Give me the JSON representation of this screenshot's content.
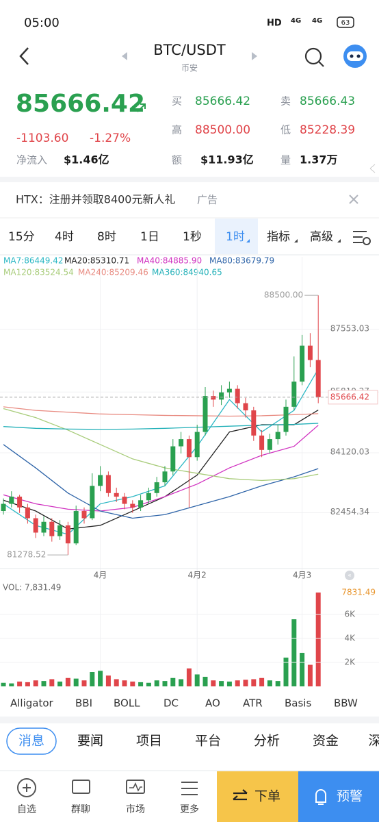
{
  "status": {
    "time": "05:00",
    "hd": "HD",
    "net1": "4G",
    "net2": "4G",
    "battery": "63"
  },
  "header": {
    "pair": "BTC/USDT",
    "exchange": "币安"
  },
  "ticker": {
    "price": "85666.42",
    "change": "-1103.60",
    "change_pct": "-1.27%",
    "inflow_label": "净流入",
    "inflow": "$1.46亿",
    "buy_label": "买",
    "buy": "85666.42",
    "sell_label": "卖",
    "sell": "85666.43",
    "high_label": "高",
    "high": "88500.00",
    "low_label": "低",
    "low": "85228.39",
    "amount_label": "额",
    "amount": "$11.93亿",
    "volume_label": "量",
    "volume": "1.37万"
  },
  "ad": {
    "text": "HTX：注册并领取8400元新人礼",
    "tag": "广告"
  },
  "intervals": [
    "15分",
    "4时",
    "8时",
    "1日",
    "1秒",
    "1时",
    "指标",
    "高级"
  ],
  "active_interval": 5,
  "chart_data": {
    "type": "candlestick",
    "up_color": "#2aa050",
    "down_color": "#e0454a",
    "categories": [
      null,
      null,
      null,
      null,
      null,
      null,
      null,
      null,
      null,
      null,
      null,
      null,
      "4月",
      null,
      null,
      null,
      null,
      null,
      null,
      null,
      null,
      null,
      null,
      null,
      "4月2",
      null,
      null,
      null,
      null,
      null,
      null,
      null,
      null,
      null,
      null,
      null,
      null,
      "4月3",
      null,
      null
    ],
    "open": [
      82500,
      82700,
      82900,
      82600,
      82300,
      81900,
      82200,
      81800,
      82100,
      81600,
      82500,
      82300,
      83200,
      83500,
      83000,
      82900,
      82700,
      82600,
      82800,
      83000,
      83300,
      83600,
      84300,
      84500,
      84000,
      84700,
      85700,
      85600,
      85800,
      85900,
      85500,
      85300,
      84600,
      84200,
      84500,
      84700,
      85400,
      86100,
      87100,
      86700
    ],
    "high": [
      82850,
      83050,
      82950,
      82700,
      82400,
      82350,
      82300,
      82250,
      82200,
      82650,
      82600,
      83550,
      83750,
      83600,
      83150,
      83000,
      82800,
      82950,
      83150,
      83450,
      83750,
      84500,
      84700,
      84600,
      84900,
      85950,
      85850,
      86000,
      86100,
      86000,
      85650,
      85400,
      84750,
      84650,
      84900,
      85600,
      86800,
      87400,
      87450,
      88500
    ],
    "low": [
      82400,
      82600,
      82450,
      82150,
      81750,
      81800,
      81650,
      81700,
      81278.52,
      81550,
      82150,
      82250,
      83050,
      82900,
      82750,
      82550,
      82450,
      82500,
      82700,
      82900,
      83200,
      83500,
      84100,
      82600,
      83900,
      84600,
      85400,
      85450,
      85650,
      85350,
      85100,
      84450,
      84000,
      84100,
      84350,
      84600,
      85300,
      86000,
      86500,
      85500
    ],
    "close": [
      82700,
      82900,
      82600,
      82300,
      81900,
      82200,
      81800,
      82100,
      81600,
      82500,
      82300,
      83200,
      83500,
      83000,
      82900,
      82700,
      82600,
      82800,
      83000,
      83300,
      83600,
      84300,
      84500,
      84000,
      84700,
      85700,
      85600,
      85800,
      85900,
      85500,
      85300,
      84600,
      84200,
      84500,
      84700,
      85400,
      86100,
      87100,
      86700,
      85666.42
    ],
    "volume": [
      300,
      250,
      400,
      350,
      500,
      450,
      600,
      400,
      700,
      650,
      500,
      1200,
      1300,
      900,
      600,
      500,
      400,
      350,
      300,
      500,
      450,
      700,
      600,
      1500,
      1000,
      800,
      500,
      450,
      400,
      500,
      550,
      600,
      700,
      500,
      450,
      2400,
      5600,
      2800,
      1800,
      7831.49
    ],
    "ylim": [
      80900,
      89570
    ],
    "yticks": [
      82454.34,
      84120.03,
      85810.27,
      87553.03
    ],
    "high_marker": {
      "value": 88500,
      "label": "88500.00"
    },
    "low_marker": 81278.52,
    "last_price": 85666.42,
    "grid": true,
    "ma_x": [
      0,
      4,
      8,
      12,
      16,
      20,
      24,
      28,
      32,
      36,
      39
    ],
    "ma_series": [
      {
        "name": "MA7:86449.42",
        "color": "#2ab7c4",
        "values": [
          82700,
          82100,
          81850,
          82700,
          82900,
          83200,
          84300,
          85600,
          84700,
          85300,
          86449.42
        ]
      },
      {
        "name": "MA20:85310.71",
        "color": "#222222",
        "values": [
          82800,
          82500,
          82000,
          82100,
          82500,
          82900,
          83500,
          84700,
          84900,
          84900,
          85310.71
        ]
      },
      {
        "name": "MA40:84885.90",
        "color": "#d030c0",
        "values": [
          82950,
          82700,
          82550,
          82500,
          82600,
          82900,
          83250,
          83700,
          84050,
          84300,
          84885.9
        ]
      },
      {
        "name": "MA80:83679.79",
        "color": "#2e64a8",
        "values": [
          84350,
          83700,
          83000,
          82500,
          82300,
          82400,
          82650,
          82900,
          83200,
          83450,
          83679.79
        ]
      },
      {
        "name": "MA120:83524.54",
        "color": "#a8cc7a",
        "values": [
          85350,
          85100,
          84750,
          84350,
          83950,
          83700,
          83550,
          83400,
          83350,
          83400,
          83524.54
        ]
      },
      {
        "name": "MA240:85209.46",
        "color": "#e88a80",
        "values": [
          85400,
          85300,
          85250,
          85200,
          85180,
          85160,
          85150,
          85140,
          85150,
          85180,
          85209.46
        ]
      },
      {
        "name": "MA360:84940.65",
        "color": "#22b0b8",
        "values": [
          84850,
          84800,
          84780,
          84770,
          84780,
          84800,
          84830,
          84860,
          84890,
          84910,
          84940.65
        ]
      }
    ],
    "vol_legend": "VOL: 7,831.49",
    "vol_marker": 7831.49,
    "vlim": [
      0,
      8690
    ],
    "vticks": [
      {
        "value": 2000,
        "label": "2K"
      },
      {
        "value": 4000,
        "label": "4K"
      },
      {
        "value": 6000,
        "label": "6K"
      }
    ]
  },
  "indicators": [
    "Alligator",
    "BBI",
    "BOLL",
    "DC",
    "AO",
    "ATR",
    "Basis",
    "BBW"
  ],
  "news_tabs": [
    "消息",
    "要闻",
    "项目",
    "平台",
    "分析",
    "资金",
    "深"
  ],
  "nav": {
    "watch": "自选",
    "chat": "群聊",
    "market": "市场",
    "more": "更多",
    "order": "下单",
    "alert": "预警"
  }
}
